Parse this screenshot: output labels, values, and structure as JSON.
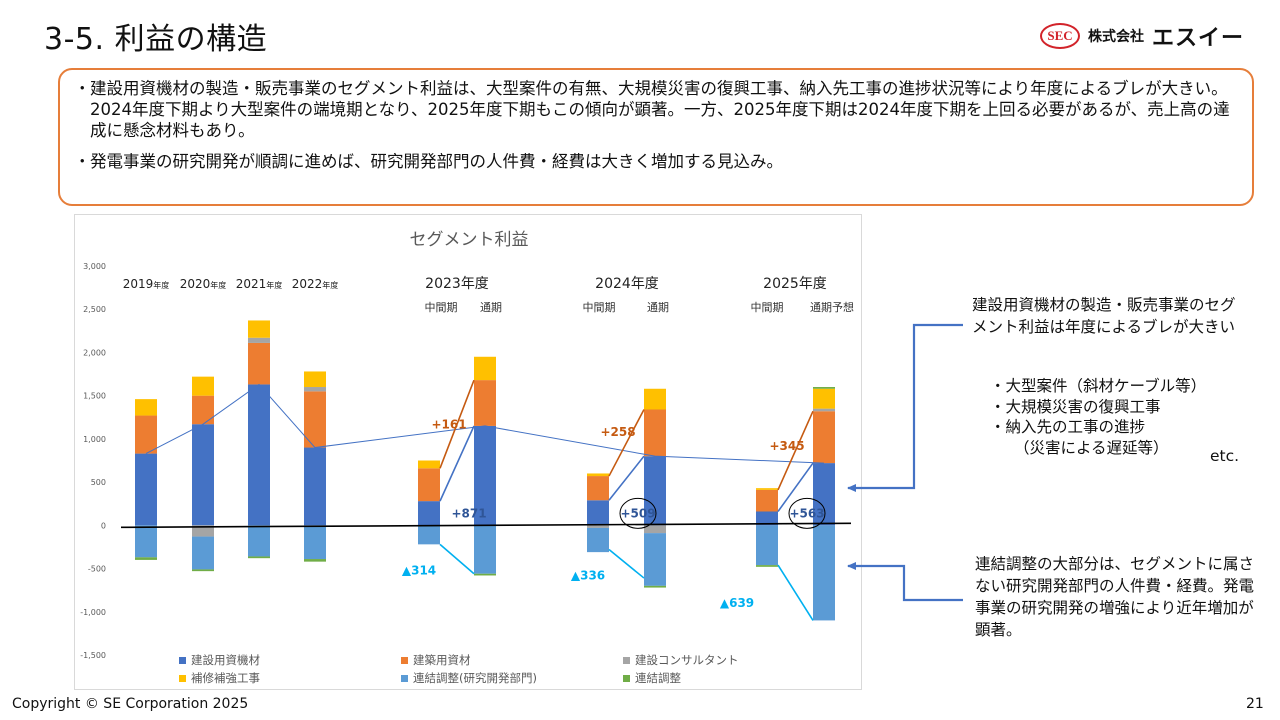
{
  "title": "3-5.  利益の構造",
  "logo": {
    "seal": "SEC",
    "kk": "株式会社",
    "name": "エスイー"
  },
  "summary": {
    "bullet": "・",
    "b1": "建設用資機材の製造・販売事業のセグメント利益は、大型案件の有無、大規模災害の復興工事、納入先工事の進捗状況等により年度によるブレが大きい。2024年度下期より大型案件の端境期となり、2025年度下期もこの傾向が顕著。一方、2025年度下期は2024年度下期を上回る必要があるが、売上高の達成に懸念材料もあり。",
    "b2": "発電事業の研究開発が順調に進めば、研究開発部門の人件費・経費は大きく増加する見込み。"
  },
  "side_note_1": {
    "text": "建設用資機材の製造・販売事業のセグメント利益は年度によるブレが大きい",
    "items": [
      "・大型案件（斜材ケーブル等）",
      "・大規模災害の復興工事",
      "・納入先の工事の進捗",
      "（災害による遅延等）"
    ],
    "etc": "etc."
  },
  "side_note_2": {
    "text": "連結調整の大部分は、セグメントに属さない研究開発部門の人件費・経費。発電事業の研究開発の増強により近年増加が顕著。"
  },
  "footer": {
    "copyright": "Copyright © SE Corporation 2025",
    "page": "21"
  },
  "chart_data": {
    "type": "bar",
    "stacked": true,
    "title": "セグメント利益",
    "ylim": [
      -1500,
      3000
    ],
    "yticks": [
      3000,
      2500,
      2000,
      1500,
      1000,
      500,
      0,
      -500,
      -1000,
      -1500
    ],
    "ytick_labels": [
      "3,000",
      "2,500",
      "2,000",
      "1,500",
      "1,000",
      "500",
      "0",
      "-500",
      "-1,000",
      "-1,500"
    ],
    "year_labels": [
      {
        "year": "2019",
        "unit": "年度"
      },
      {
        "year": "2020",
        "unit": "年度"
      },
      {
        "year": "2021",
        "unit": "年度"
      },
      {
        "year": "2022",
        "unit": "年度"
      },
      {
        "year": "2023",
        "unit": "年度"
      },
      {
        "year": "2024",
        "unit": "年度"
      },
      {
        "year": "2025",
        "unit": "年度"
      }
    ],
    "period_labels": [
      "中間期",
      "通期",
      "中間期",
      "通期",
      "中間期",
      "通期予想"
    ],
    "categories": [
      "2019年度",
      "2020年度",
      "2021年度",
      "2022年度",
      "2023年度中間期",
      "2023年度通期",
      "2024年度中間期",
      "2024年度通期",
      "2025年度中間期",
      "2025年度通期予想"
    ],
    "series": [
      {
        "name": "建設用資機材",
        "color": "#4472c4",
        "values": [
          830,
          1170,
          1630,
          900,
          280,
          1150,
          290,
          800,
          160,
          720
        ]
      },
      {
        "name": "建築用資材",
        "color": "#ed7d31",
        "values": [
          440,
          330,
          480,
          650,
          380,
          530,
          280,
          540,
          250,
          600
        ]
      },
      {
        "name": "建設コンサルタント",
        "color": "#a5a5a5",
        "values": [
          0,
          -130,
          60,
          50,
          0,
          0,
          -30,
          -90,
          0,
          30
        ]
      },
      {
        "name": "補修補強工事",
        "color": "#ffc000",
        "values": [
          190,
          220,
          200,
          180,
          90,
          270,
          30,
          240,
          20,
          230
        ]
      },
      {
        "name": "連結調整(研究開発部門)",
        "color": "#5b9bd5",
        "values": [
          -370,
          -380,
          -360,
          -390,
          -220,
          -560,
          -280,
          -610,
          -460,
          -1100
        ]
      },
      {
        "name": "連結調整",
        "color": "#70ad47",
        "values": [
          -30,
          -20,
          -20,
          -30,
          0,
          -20,
          0,
          -20,
          -20,
          20
        ]
      }
    ],
    "trend_line": {
      "name": "建設用資機材推移",
      "values": [
        830,
        1170,
        1630,
        900,
        null,
        1150,
        null,
        800,
        null,
        720
      ]
    },
    "annotations": {
      "construction_growth": [
        "+161",
        "+258",
        "+345"
      ],
      "materials_growth": [
        "+871",
        "+509",
        "+563"
      ],
      "rnd_growth": [
        "▲314",
        "▲336",
        "▲639"
      ]
    },
    "legend": [
      "建設用資機材",
      "建築用資材",
      "建設コンサルタント",
      "補修補強工事",
      "連結調整(研究開発部門)",
      "連結調整"
    ],
    "colors": {
      "orange": "#c55a11",
      "blue": "#2f5597",
      "cyan": "#00b0f0",
      "arrow": "#4472c4"
    }
  }
}
